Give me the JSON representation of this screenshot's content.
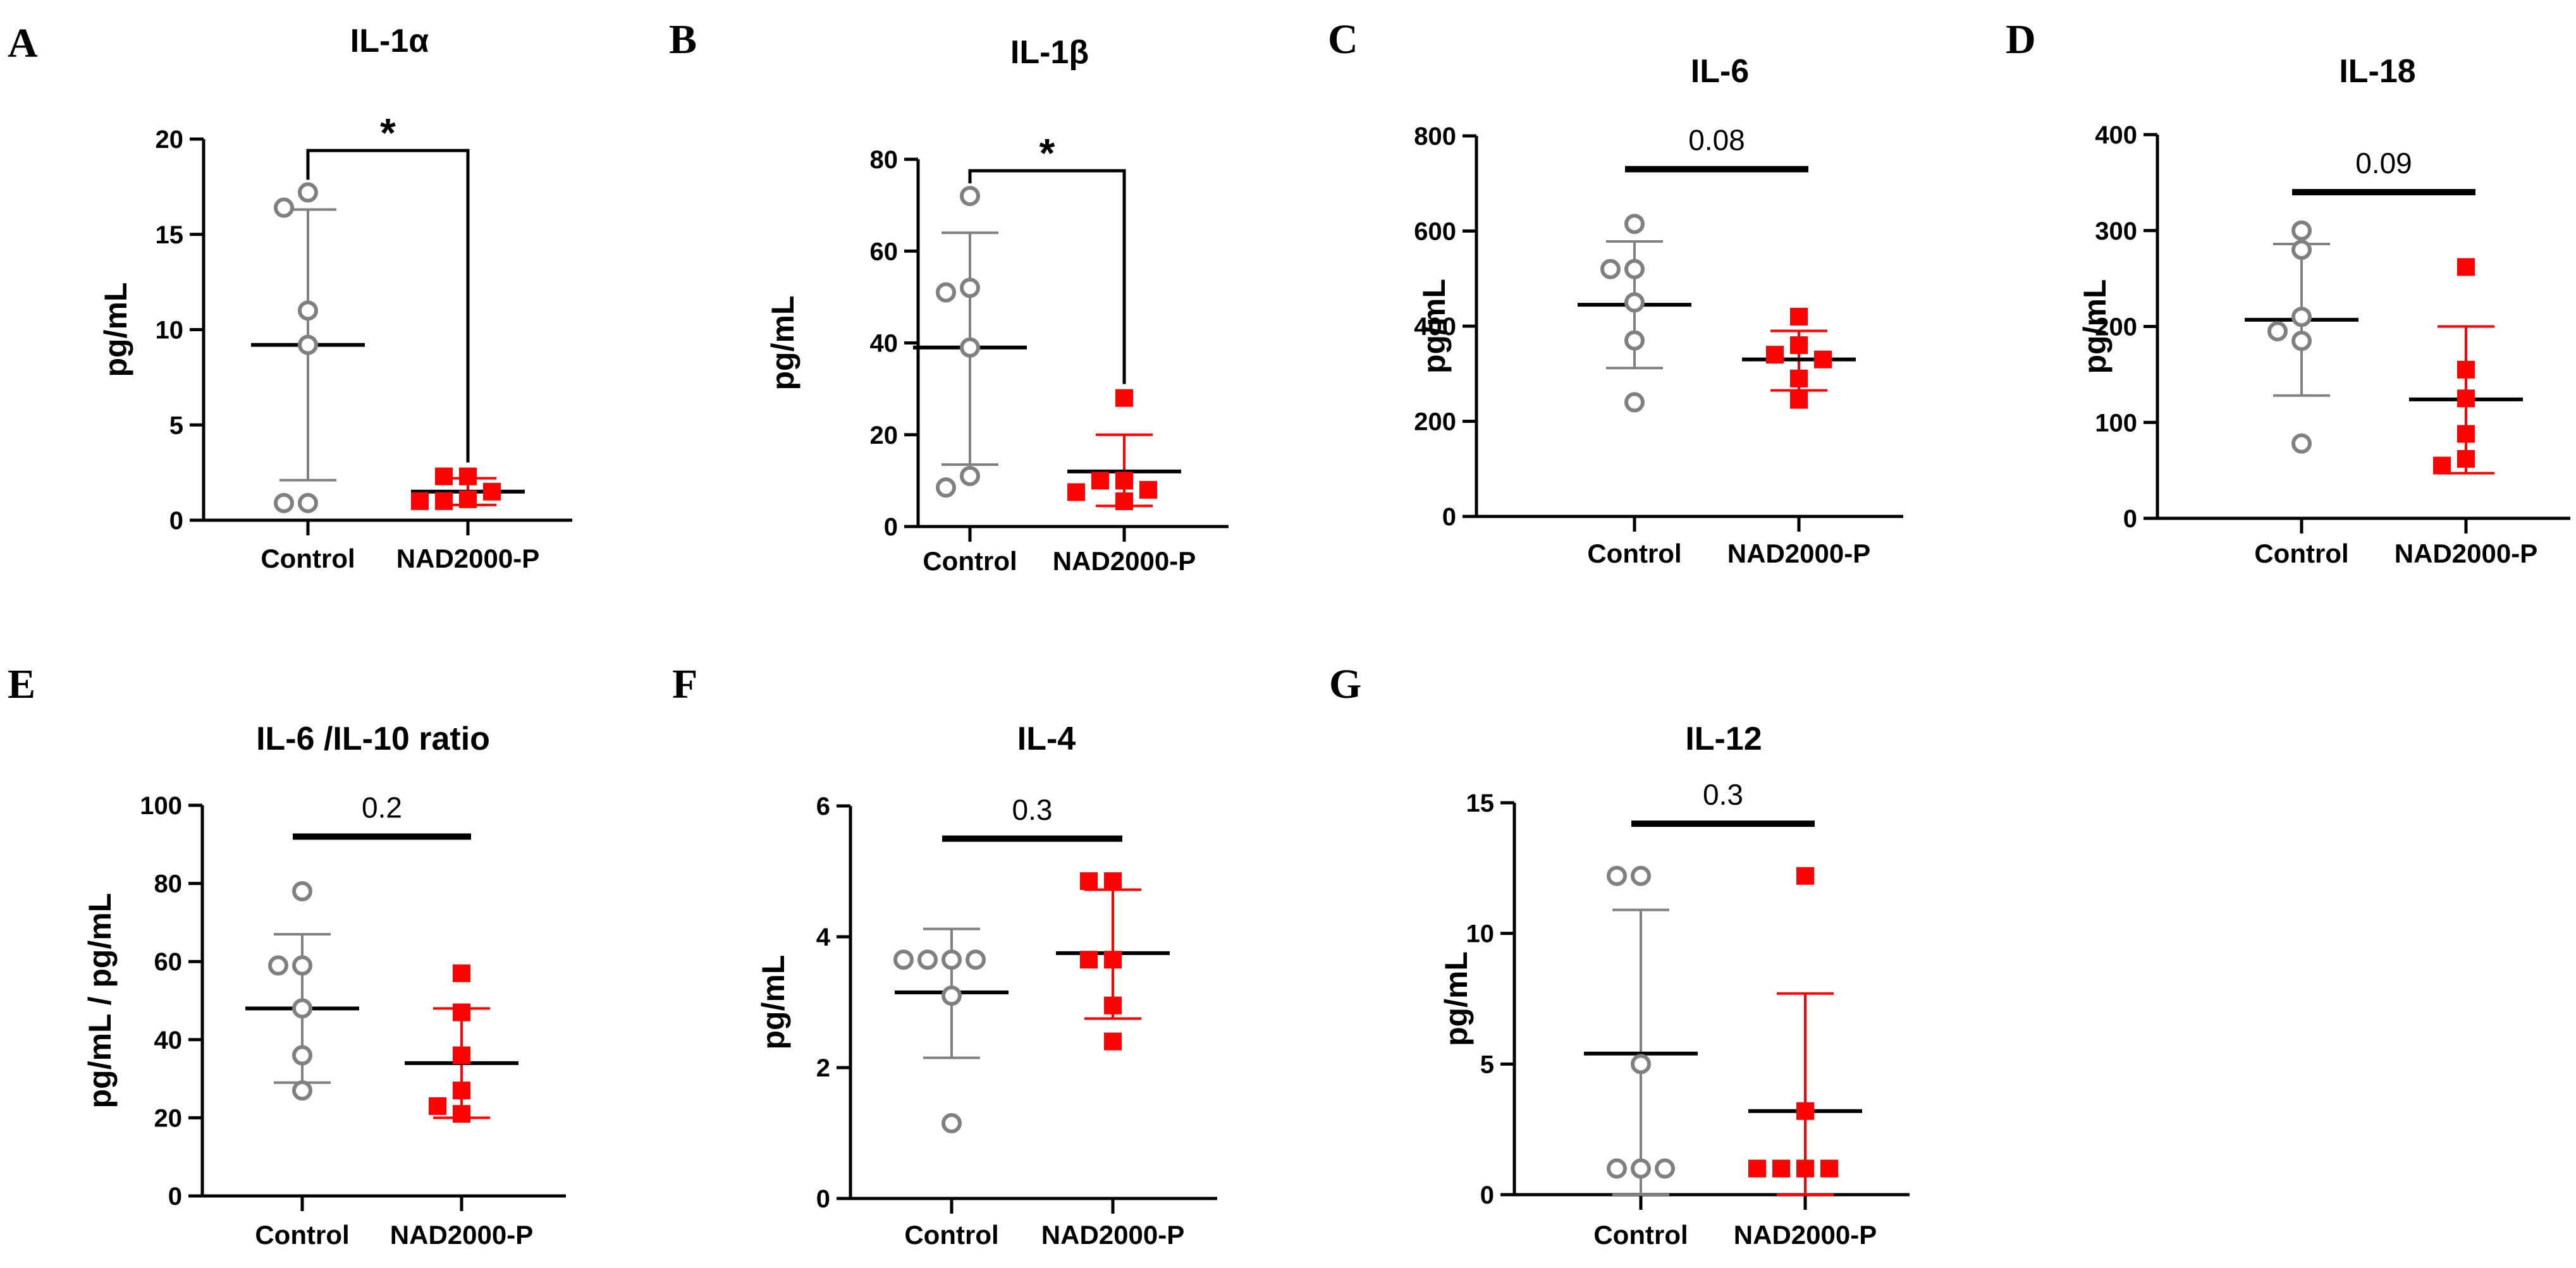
{
  "figure": {
    "background": "#ffffff"
  },
  "colors": {
    "control": "#808080",
    "treated": "#ff0000",
    "axis": "#000000"
  },
  "chart_data": [
    {
      "type": "scatter",
      "panel": "A",
      "title": "IL-1α",
      "ylabel": "pg/mL",
      "xlabel": "",
      "categories": [
        "Control",
        "NAD2000-P"
      ],
      "ylim": [
        0,
        20
      ],
      "yticks": [
        0,
        5,
        10,
        15,
        20
      ],
      "series": [
        {
          "name": "Control",
          "marker": "open-circle",
          "values": [
            17.2,
            16.4,
            11.0,
            9.2,
            0.9,
            0.9
          ],
          "mean": 9.2,
          "sd_low": 2.1,
          "sd_high": 16.3
        },
        {
          "name": "NAD2000-P",
          "marker": "filled-square",
          "values": [
            2.3,
            2.3,
            1.5,
            1.1,
            1.0,
            1.0
          ],
          "mean": 1.5,
          "sd_low": 0.8,
          "sd_high": 2.2
        }
      ],
      "significance": {
        "label": "*",
        "style": "bracket",
        "y": 19.4
      }
    },
    {
      "type": "scatter",
      "panel": "B",
      "title": "IL-1β",
      "ylabel": "pg/mL",
      "xlabel": "",
      "categories": [
        "Control",
        "NAD2000-P"
      ],
      "ylim": [
        0,
        80
      ],
      "yticks": [
        0,
        20,
        40,
        60,
        80
      ],
      "series": [
        {
          "name": "Control",
          "marker": "open-circle",
          "values": [
            72,
            52,
            51,
            39,
            11,
            8.5
          ],
          "mean": 39,
          "sd_low": 13.5,
          "sd_high": 64
        },
        {
          "name": "NAD2000-P",
          "marker": "filled-square",
          "values": [
            28,
            10,
            10,
            8,
            7.5,
            5.5
          ],
          "mean": 12,
          "sd_low": 4.5,
          "sd_high": 20
        }
      ],
      "significance": {
        "label": "*",
        "style": "bracket",
        "y": 77.5
      }
    },
    {
      "type": "scatter",
      "panel": "C",
      "title": "IL-6",
      "ylabel": "pg/mL",
      "xlabel": "",
      "categories": [
        "Control",
        "NAD2000-P"
      ],
      "ylim": [
        0,
        800
      ],
      "yticks": [
        0,
        200,
        400,
        600,
        800
      ],
      "series": [
        {
          "name": "Control",
          "marker": "open-circle",
          "values": [
            615,
            520,
            520,
            450,
            370,
            240
          ],
          "mean": 445,
          "sd_low": 312,
          "sd_high": 578
        },
        {
          "name": "NAD2000-P",
          "marker": "filled-square",
          "values": [
            420,
            360,
            340,
            330,
            290,
            245
          ],
          "mean": 330,
          "sd_low": 265,
          "sd_high": 390
        }
      ],
      "significance": {
        "label": "0.08",
        "style": "bar",
        "y": 730
      }
    },
    {
      "type": "scatter",
      "panel": "D",
      "title": "IL-18",
      "ylabel": "pg/mL",
      "xlabel": "",
      "categories": [
        "Control",
        "NAD2000-P"
      ],
      "ylim": [
        0,
        400
      ],
      "yticks": [
        0,
        100,
        200,
        300,
        400
      ],
      "series": [
        {
          "name": "Control",
          "marker": "open-circle",
          "values": [
            300,
            280,
            210,
            195,
            185,
            78
          ],
          "mean": 207,
          "sd_low": 128,
          "sd_high": 286
        },
        {
          "name": "NAD2000-P",
          "marker": "filled-square",
          "values": [
            262,
            155,
            125,
            88,
            62,
            55
          ],
          "mean": 124,
          "sd_low": 47,
          "sd_high": 200
        }
      ],
      "significance": {
        "label": "0.09",
        "style": "bar",
        "y": 340
      }
    },
    {
      "type": "scatter",
      "panel": "E",
      "title": "IL-6 /IL-10 ratio",
      "ylabel": "pg/mL / pg/mL",
      "xlabel": "",
      "categories": [
        "Control",
        "NAD2000-P"
      ],
      "ylim": [
        0,
        100
      ],
      "yticks": [
        0,
        20,
        40,
        60,
        80,
        100
      ],
      "series": [
        {
          "name": "Control",
          "marker": "open-circle",
          "values": [
            78,
            59,
            59,
            48,
            36,
            27
          ],
          "mean": 48,
          "sd_low": 29,
          "sd_high": 67
        },
        {
          "name": "NAD2000-P",
          "marker": "filled-square",
          "values": [
            57,
            47,
            36,
            27,
            23,
            21
          ],
          "mean": 34,
          "sd_low": 20,
          "sd_high": 48
        }
      ],
      "significance": {
        "label": "0.2",
        "style": "bar",
        "y": 92
      }
    },
    {
      "type": "scatter",
      "panel": "F",
      "title": "IL-4",
      "ylabel": "pg/mL",
      "xlabel": "",
      "categories": [
        "Control",
        "NAD2000-P"
      ],
      "ylim": [
        0,
        6
      ],
      "yticks": [
        0,
        2,
        4,
        6
      ],
      "series": [
        {
          "name": "Control",
          "marker": "open-circle",
          "values": [
            3.65,
            3.65,
            3.65,
            3.65,
            3.1,
            1.15
          ],
          "mean": 3.15,
          "sd_low": 2.15,
          "sd_high": 4.12
        },
        {
          "name": "NAD2000-P",
          "marker": "filled-square",
          "values": [
            4.85,
            4.85,
            3.65,
            3.65,
            2.95,
            2.4
          ],
          "mean": 3.75,
          "sd_low": 2.75,
          "sd_high": 4.72
        }
      ],
      "significance": {
        "label": "0.3",
        "style": "bar",
        "y": 5.5
      }
    },
    {
      "type": "scatter",
      "panel": "G",
      "title": "IL-12",
      "ylabel": "pg/mL",
      "xlabel": "",
      "categories": [
        "Control",
        "NAD2000-P"
      ],
      "ylim": [
        0,
        15
      ],
      "yticks": [
        0,
        5,
        10,
        15
      ],
      "series": [
        {
          "name": "Control",
          "marker": "open-circle",
          "values": [
            12.2,
            12.2,
            5.0,
            1.0,
            1.0,
            1.0
          ],
          "mean": 5.4,
          "sd_low": 0,
          "sd_high": 10.9
        },
        {
          "name": "NAD2000-P",
          "marker": "filled-square",
          "values": [
            12.2,
            3.2,
            1.0,
            1.0,
            1.0,
            1.0
          ],
          "mean": 3.2,
          "sd_low": 0,
          "sd_high": 7.7
        }
      ],
      "significance": {
        "label": "0.3",
        "style": "bar",
        "y": 14.2
      }
    }
  ]
}
